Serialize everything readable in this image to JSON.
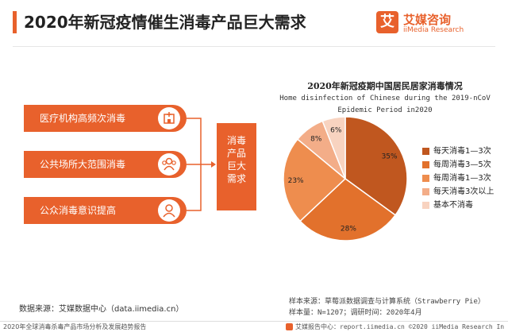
{
  "header": {
    "title": "2020年新冠疫情催生消毒产品巨大需求"
  },
  "logo": {
    "mark": "艾",
    "name_cn": "艾媒咨询",
    "name_en": "iiMedia Research"
  },
  "categories_left": [
    {
      "label": "医疗机构高频次消毒",
      "icon": "hospital-icon"
    },
    {
      "label": "公共场所大范围消毒",
      "icon": "people-group-icon"
    },
    {
      "label": "公众消毒意识提高",
      "icon": "person-icon"
    }
  ],
  "center_box": {
    "text": "消毒产品巨大需求"
  },
  "colors": {
    "accent": "#e8612c",
    "dark": "#c0571f"
  },
  "chart_data": {
    "type": "pie",
    "title": "2020年新冠疫期中国居民居家消毒情况",
    "subtitle_line1": "Home disinfection of Chinese during the 2019-nCoV",
    "subtitle_line2": "Epidemic Period in2020",
    "unit": "%",
    "slices": [
      {
        "label": "每天消毒1—3次",
        "value": 35,
        "display": "35%",
        "color": "#c0571f"
      },
      {
        "label": "每周消毒3—5次",
        "value": 28,
        "display": "28%",
        "color": "#e2712c"
      },
      {
        "label": "每周消毒1—3次",
        "value": 23,
        "display": "23%",
        "color": "#ee8d4e"
      },
      {
        "label": "每天消毒3次以上",
        "value": 8,
        "display": "8%",
        "color": "#f3ad88"
      },
      {
        "label": "基本不消毒",
        "value": 6,
        "display": "6%",
        "color": "#f8d3c0"
      }
    ],
    "legend_position": "right"
  },
  "notes": {
    "sample_source": "样本来源：草莓派数据调查与计算系统（Strawberry Pie）",
    "sample_size": "样本量：N=1207；调研时间：2020年4月"
  },
  "data_source": "数据来源：艾媒数据中心（data.iimedia.cn）",
  "footer": {
    "left": "2020年全球消毒杀毒产品市场分析及发展趋势报告",
    "right": "艾媒报告中心：report.iimedia.cn  ©2020   iiMedia Research  In"
  }
}
